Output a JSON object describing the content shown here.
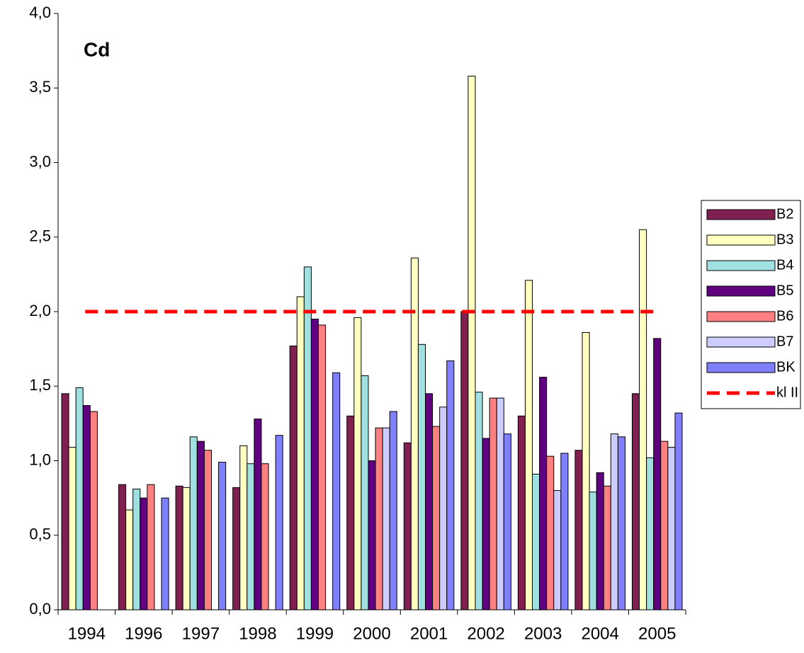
{
  "chart_data": {
    "type": "bar",
    "annotation": "Cd",
    "categories": [
      "1994",
      "1996",
      "1997",
      "1998",
      "1999",
      "2000",
      "2001",
      "2002",
      "2003",
      "2004",
      "2005"
    ],
    "series": [
      {
        "name": "B2",
        "color": "#802050",
        "values": [
          1.45,
          0.84,
          0.83,
          0.82,
          1.77,
          1.3,
          1.12,
          2.0,
          1.3,
          1.07,
          1.45
        ]
      },
      {
        "name": "B3",
        "color": "#ffffc0",
        "values": [
          1.09,
          0.67,
          0.82,
          1.1,
          2.1,
          1.96,
          2.36,
          3.58,
          2.21,
          1.86,
          2.55
        ]
      },
      {
        "name": "B4",
        "color": "#a0e0e0",
        "values": [
          1.49,
          0.81,
          1.16,
          0.98,
          2.3,
          1.57,
          1.78,
          1.46,
          0.91,
          0.79,
          1.02
        ]
      },
      {
        "name": "B5",
        "color": "#600080",
        "values": [
          1.37,
          0.75,
          1.13,
          1.28,
          1.95,
          1.0,
          1.45,
          1.15,
          1.56,
          0.92,
          1.82
        ]
      },
      {
        "name": "B6",
        "color": "#ff8080",
        "values": [
          1.33,
          0.84,
          1.07,
          0.98,
          1.91,
          1.22,
          1.23,
          1.42,
          1.03,
          0.83,
          1.13
        ]
      },
      {
        "name": "B7",
        "color": "#ccccff",
        "values": [
          null,
          null,
          null,
          null,
          null,
          1.22,
          1.36,
          1.42,
          0.8,
          1.18,
          1.09
        ]
      },
      {
        "name": "BK",
        "color": "#8080ff",
        "values": [
          null,
          0.75,
          0.99,
          1.17,
          1.59,
          1.33,
          1.67,
          1.18,
          1.05,
          1.16,
          1.32
        ]
      }
    ],
    "reference_line": {
      "name": "kl II",
      "value": 2,
      "color": "#ff0000"
    },
    "ylim": [
      0,
      4
    ],
    "yticks": [
      {
        "value": 0,
        "label": "0,0"
      },
      {
        "value": 0.5,
        "label": "0,5"
      },
      {
        "value": 1,
        "label": "1,0"
      },
      {
        "value": 1.5,
        "label": "1,5"
      },
      {
        "value": 2,
        "label": "2,0"
      },
      {
        "value": 2.5,
        "label": "2,5"
      },
      {
        "value": 3,
        "label": "3,0"
      },
      {
        "value": 3.5,
        "label": "3,5"
      },
      {
        "value": 4,
        "label": "4,0"
      }
    ],
    "grid": false,
    "legend": "right"
  }
}
